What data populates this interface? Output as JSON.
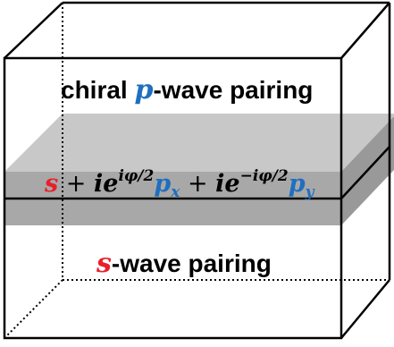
{
  "top_label": {
    "prefix": "chiral ",
    "symbol": "p",
    "suffix": "-wave pairing"
  },
  "interface_label": {
    "s": "s",
    "plus1": " + ",
    "ie1": "ie",
    "exp1": "iφ/2",
    "p1": "p",
    "sub1": "x",
    "plus2": " + ",
    "ie2": "ie",
    "exp2": "−iφ/2",
    "p2": "p",
    "sub2": "y"
  },
  "bottom_label": {
    "symbol": "s",
    "suffix": "-wave pairing"
  },
  "colors": {
    "text": "#000000",
    "p_symbol": "#1f6fbf",
    "s_symbol": "#e8202a",
    "layer_front": "#a8a8a8",
    "layer_top": "#c8c8c8",
    "layer_side": "#999999",
    "edge": "#000000"
  }
}
